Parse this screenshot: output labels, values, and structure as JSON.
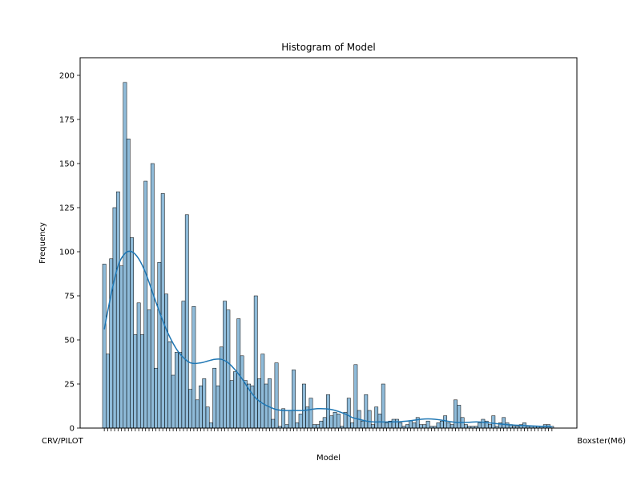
{
  "chart_data": {
    "type": "bar",
    "title": "Histogram of Model",
    "xlabel": "Model",
    "ylabel": "Frequency",
    "ylim": [
      0,
      210
    ],
    "yticks": [
      0,
      25,
      50,
      75,
      100,
      125,
      150,
      175,
      200
    ],
    "x_tick_text_left": "CRV/PILOT",
    "x_tick_text_right": "Boxster(M6)",
    "grid": false,
    "bar_color": "#1f77b4",
    "bar_fill_opacity": 0.5,
    "bar_edge_color": "#000000",
    "kde_color": "#1f77b4",
    "values": [
      93,
      42,
      96,
      125,
      134,
      92,
      196,
      164,
      108,
      53,
      71,
      53,
      140,
      67,
      150,
      34,
      94,
      133,
      76,
      49,
      30,
      43,
      43,
      72,
      121,
      22,
      69,
      16,
      24,
      28,
      12,
      3,
      34,
      24,
      46,
      72,
      67,
      27,
      32,
      62,
      41,
      27,
      25,
      24,
      75,
      28,
      42,
      25,
      28,
      5,
      37,
      1,
      11,
      2,
      10,
      33,
      3,
      8,
      25,
      12,
      17,
      2,
      2,
      4,
      6,
      19,
      7,
      9,
      8,
      1,
      9,
      17,
      3,
      36,
      10,
      4,
      19,
      10,
      2,
      12,
      8,
      25,
      3,
      4,
      5,
      5,
      3,
      1,
      2,
      4,
      3,
      6,
      2,
      2,
      4,
      1,
      1,
      3,
      4,
      7,
      3,
      2,
      16,
      13,
      6,
      2,
      1,
      1,
      1,
      3,
      5,
      4,
      2,
      7,
      1,
      3,
      6,
      3,
      2,
      1,
      1,
      2,
      3,
      1,
      1,
      1,
      1,
      1,
      2,
      2,
      1
    ],
    "kde": {
      "x": [
        0,
        2,
        4,
        6,
        8,
        10,
        12,
        14,
        16,
        18,
        20,
        22,
        25,
        28,
        30,
        32,
        34,
        36,
        38,
        40,
        42,
        44,
        46,
        48,
        50,
        52,
        55,
        58,
        62,
        66,
        70,
        72,
        74,
        76,
        78,
        80,
        84,
        88,
        90,
        92,
        94,
        96,
        98,
        100,
        102,
        104,
        106,
        108,
        110,
        114,
        118,
        122,
        126,
        130
      ],
      "y": [
        56,
        76,
        92,
        99,
        100,
        96,
        88,
        77,
        66,
        56,
        48,
        42,
        37,
        37,
        38,
        39,
        39,
        37,
        33,
        28,
        22,
        17,
        14,
        12,
        10.5,
        10,
        10,
        10,
        11,
        10.5,
        8,
        6,
        5,
        4,
        3.5,
        3.5,
        3.5,
        4,
        4.5,
        5,
        5.2,
        5,
        4.5,
        3.8,
        3.3,
        3.2,
        3.3,
        3.5,
        3.3,
        2.5,
        1.8,
        1.4,
        1.1,
        0.8
      ]
    }
  }
}
